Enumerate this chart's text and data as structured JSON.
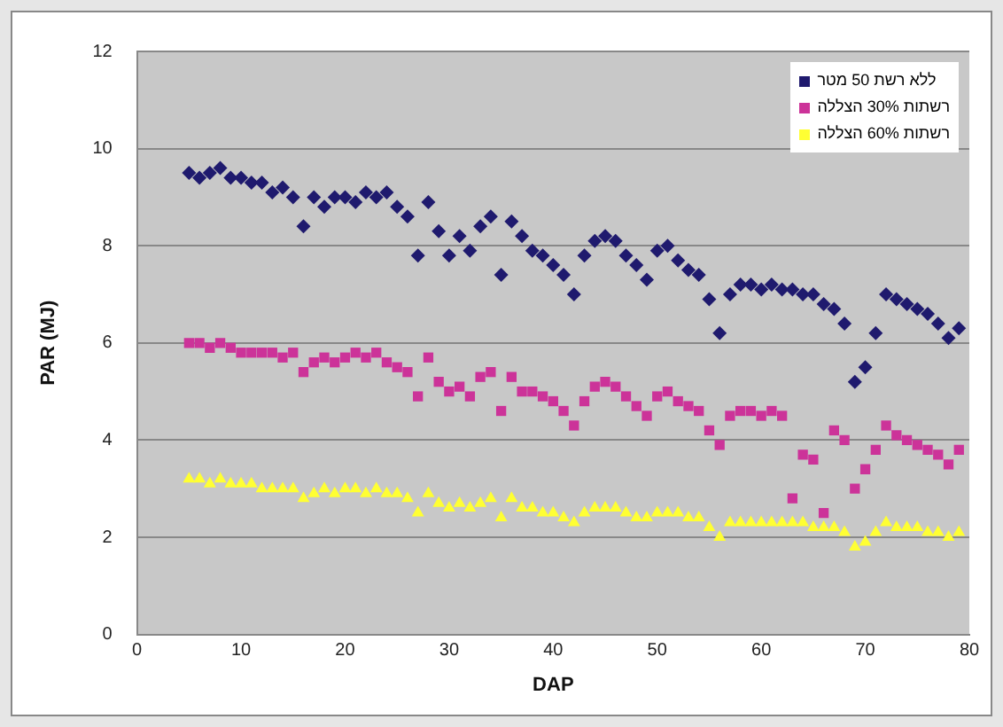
{
  "chart_data": {
    "type": "scatter",
    "xlabel": "DAP",
    "ylabel": "PAR (MJ)",
    "x": [
      5,
      6,
      7,
      8,
      9,
      10,
      11,
      12,
      13,
      14,
      15,
      16,
      17,
      18,
      19,
      20,
      21,
      22,
      23,
      24,
      25,
      26,
      27,
      28,
      29,
      30,
      31,
      32,
      33,
      34,
      35,
      36,
      37,
      38,
      39,
      40,
      41,
      42,
      43,
      44,
      45,
      46,
      47,
      48,
      49,
      50,
      51,
      52,
      53,
      54,
      55,
      56,
      57,
      58,
      59,
      60,
      61,
      62,
      63,
      64,
      65,
      66,
      67,
      68,
      69,
      70,
      71,
      72,
      73,
      74,
      75,
      76,
      77,
      78,
      79
    ],
    "series": [
      {
        "name": "ללא רשת 50 מטר",
        "color": "#1f1a6e",
        "marker": "diamond",
        "values": [
          9.5,
          9.4,
          9.5,
          9.6,
          9.4,
          9.4,
          9.3,
          9.3,
          9.1,
          9.2,
          9.0,
          8.4,
          9.0,
          8.8,
          9.0,
          9.0,
          8.9,
          9.1,
          9.0,
          9.1,
          8.8,
          8.6,
          7.8,
          8.9,
          8.3,
          7.8,
          8.2,
          7.9,
          8.4,
          8.6,
          7.4,
          8.5,
          8.2,
          7.9,
          7.8,
          7.6,
          7.4,
          7.0,
          7.8,
          8.1,
          8.2,
          8.1,
          7.8,
          7.6,
          7.3,
          7.9,
          8.0,
          7.7,
          7.5,
          7.4,
          6.9,
          6.2,
          7.0,
          7.2,
          7.2,
          7.1,
          7.2,
          7.1,
          7.1,
          7.0,
          7.0,
          6.8,
          6.7,
          6.4,
          5.2,
          5.5,
          6.2,
          7.0,
          6.9,
          6.8,
          6.7,
          6.6,
          6.4,
          6.1,
          6.3
        ]
      },
      {
        "name": "רשתות 30% הצללה",
        "color": "#cc3399",
        "marker": "square",
        "values": [
          6.0,
          6.0,
          5.9,
          6.0,
          5.9,
          5.8,
          5.8,
          5.8,
          5.8,
          5.7,
          5.8,
          5.4,
          5.6,
          5.7,
          5.6,
          5.7,
          5.8,
          5.7,
          5.8,
          5.6,
          5.5,
          5.4,
          4.9,
          5.7,
          5.2,
          5.0,
          5.1,
          4.9,
          5.3,
          5.4,
          4.6,
          5.3,
          5.0,
          5.0,
          4.9,
          4.8,
          4.6,
          4.3,
          4.8,
          5.1,
          5.2,
          5.1,
          4.9,
          4.7,
          4.5,
          4.9,
          5.0,
          4.8,
          4.7,
          4.6,
          4.2,
          3.9,
          4.5,
          4.6,
          4.6,
          4.5,
          4.6,
          4.5,
          2.8,
          3.7,
          3.6,
          2.5,
          4.2,
          4.0,
          3.0,
          3.4,
          3.8,
          4.3,
          4.1,
          4.0,
          3.9,
          3.8,
          3.7,
          3.5,
          3.8
        ]
      },
      {
        "name": "רשתות 60% הצללה",
        "color": "#ffff33",
        "marker": "triangle",
        "values": [
          3.2,
          3.2,
          3.1,
          3.2,
          3.1,
          3.1,
          3.1,
          3.0,
          3.0,
          3.0,
          3.0,
          2.8,
          2.9,
          3.0,
          2.9,
          3.0,
          3.0,
          2.9,
          3.0,
          2.9,
          2.9,
          2.8,
          2.5,
          2.9,
          2.7,
          2.6,
          2.7,
          2.6,
          2.7,
          2.8,
          2.4,
          2.8,
          2.6,
          2.6,
          2.5,
          2.5,
          2.4,
          2.3,
          2.5,
          2.6,
          2.6,
          2.6,
          2.5,
          2.4,
          2.4,
          2.5,
          2.5,
          2.5,
          2.4,
          2.4,
          2.2,
          2.0,
          2.3,
          2.3,
          2.3,
          2.3,
          2.3,
          2.3,
          2.3,
          2.3,
          2.2,
          2.2,
          2.2,
          2.1,
          1.8,
          1.9,
          2.1,
          2.3,
          2.2,
          2.2,
          2.2,
          2.1,
          2.1,
          2.0,
          2.1
        ]
      }
    ],
    "xlim": [
      0,
      80
    ],
    "xticks": [
      0,
      10,
      20,
      30,
      40,
      50,
      60,
      70,
      80
    ],
    "ylim": [
      0,
      12
    ],
    "yticks": [
      0,
      2,
      4,
      6,
      8,
      10,
      12
    ],
    "grid": "y",
    "legend": "top right"
  }
}
